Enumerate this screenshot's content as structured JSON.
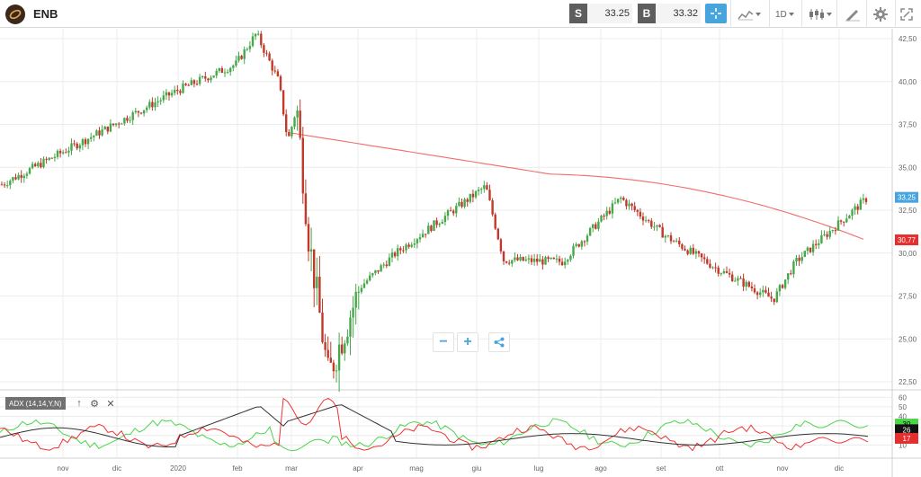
{
  "header": {
    "symbol": "ENB",
    "sell_label": "S",
    "sell_price": "33.25",
    "buy_label": "B",
    "buy_price": "33.32",
    "timeframe": "1D"
  },
  "colors": {
    "up": "#46a84a",
    "down": "#c0392b",
    "ma": "#f26c6c",
    "accent": "#47a4dd",
    "adx": "#333333",
    "di_plus": "#4cd44c",
    "di_minus": "#ee3333",
    "grid": "#ececec"
  },
  "icons": {
    "logo": "etoro-logo-icon",
    "crosshair": "crosshair-icon",
    "chart_type": "line-chart-icon",
    "candles": "candlestick-icon",
    "draw": "pencil-icon",
    "settings": "gear-icon",
    "fullscreen": "fullscreen-icon"
  },
  "zoom": {
    "minus": "−",
    "plus": "+"
  },
  "indicator": {
    "label": "ADX (14,14,Y,N)",
    "up_icon": "↑",
    "gear_icon": "⚙",
    "close_icon": "✕"
  },
  "chart_data": {
    "type": "candlestick",
    "months": [
      "nov",
      "dic",
      "2020",
      "feb",
      "mar",
      "apr",
      "mag",
      "giu",
      "lug",
      "ago",
      "set",
      "ott",
      "nov",
      "dic"
    ],
    "price_axis": {
      "ticks": [
        "42,50",
        "40,00",
        "37,50",
        "35,00",
        "32,50",
        "30,00",
        "27,50",
        "25,00",
        "22,50"
      ],
      "min": 22.5,
      "max": 42.5
    },
    "price_path_keypoints": [
      [
        "nov",
        34.0
      ],
      [
        "dic",
        37.3
      ],
      [
        "2020",
        39.5
      ],
      [
        "feb",
        41.0
      ],
      [
        "feb",
        42.8
      ],
      [
        "mar",
        40.0
      ],
      [
        "mar",
        36.5
      ],
      [
        "mar",
        38.5
      ],
      [
        "mar",
        31.0
      ],
      [
        "apr",
        22.8
      ],
      [
        "apr",
        28.0
      ],
      [
        "mag",
        30.0
      ],
      [
        "giu",
        33.9
      ],
      [
        "giu",
        29.6
      ],
      [
        "lug",
        29.5
      ],
      [
        "ago",
        33.2
      ],
      [
        "set",
        31.0
      ],
      [
        "ott",
        29.0
      ],
      [
        "nov",
        27.3
      ],
      [
        "nov",
        29.5
      ],
      [
        "dic",
        33.25
      ]
    ],
    "last_price": "33,25",
    "ma_value": "30,77",
    "moving_average": {
      "start": 37.0,
      "end": 30.7
    },
    "adx_axis": {
      "ticks": [
        "60",
        "50",
        "40",
        "30",
        "20",
        "10"
      ],
      "min": 0,
      "max": 65
    },
    "adx_values": {
      "adx": "26",
      "di_plus": "30",
      "di_minus": "17"
    }
  }
}
